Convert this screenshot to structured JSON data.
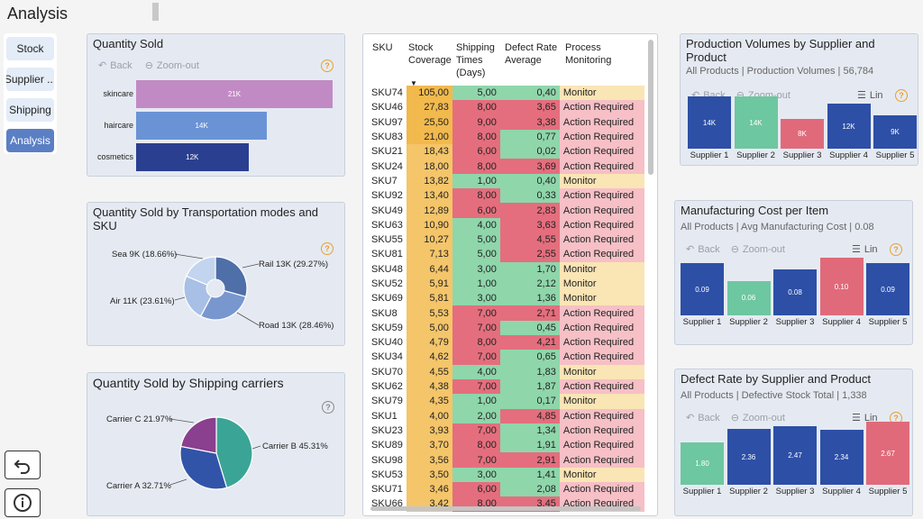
{
  "page": {
    "title": "Analysis"
  },
  "nav": {
    "items": [
      "Stock",
      "Supplier ...",
      "Shipping",
      "Analysis"
    ],
    "active": 3
  },
  "colors": {
    "accent": "#5b7fc4",
    "panel": "#e5eaf2",
    "help": "#e8a030"
  },
  "toolbar": {
    "back": "Back",
    "zoom_out": "Zoom-out",
    "lin": "Lin"
  },
  "qty_sold": {
    "title": "Quantity Sold",
    "chart_data": {
      "type": "bar",
      "orientation": "horizontal",
      "categories": [
        "skincare",
        "haircare",
        "cosmetics"
      ],
      "values": [
        21,
        14,
        12
      ],
      "labels": [
        "21K",
        "14K",
        "12K"
      ],
      "colors": [
        "#c28ac4",
        "#6a93d6",
        "#2a3f8f"
      ]
    }
  },
  "transport": {
    "title": "Quantity Sold by Transportation modes and SKU",
    "chart_data": {
      "type": "pie",
      "donut": true,
      "labels": [
        "Sea 9K (18.66%)",
        "Rail 13K (29.27%)",
        "Air 11K (23.61%)",
        "Road 13K (28.46%)"
      ],
      "values": [
        18.66,
        29.27,
        23.61,
        28.46
      ],
      "colors": [
        "#c3d4ee",
        "#4f6fa8",
        "#a8c0e6",
        "#7897cf"
      ]
    }
  },
  "carriers": {
    "title": "Quantity Sold by Shipping carriers",
    "chart_data": {
      "type": "pie",
      "labels": [
        "Carrier B 45.31%",
        "Carrier A 32.71%",
        "Carrier C 21.97%"
      ],
      "values": [
        45.31,
        32.71,
        21.97
      ],
      "colors": [
        "#3aa596",
        "#3254a8",
        "#8a3f8f"
      ]
    }
  },
  "table": {
    "headers": [
      "SKU",
      "Stock Coverage",
      "Shipping Times (Days)",
      "Defect Rate Average",
      "Process Monitoring"
    ],
    "rows": [
      [
        "SKU74",
        "105,00",
        "5,00",
        "0,40",
        "Monitor"
      ],
      [
        "SKU46",
        "27,83",
        "8,00",
        "3,65",
        "Action Required"
      ],
      [
        "SKU97",
        "25,50",
        "9,00",
        "3,38",
        "Action Required"
      ],
      [
        "SKU83",
        "21,00",
        "8,00",
        "0,77",
        "Action Required"
      ],
      [
        "SKU21",
        "18,43",
        "6,00",
        "0,02",
        "Action Required"
      ],
      [
        "SKU24",
        "18,00",
        "8,00",
        "3,69",
        "Action Required"
      ],
      [
        "SKU7",
        "13,82",
        "1,00",
        "0,40",
        "Monitor"
      ],
      [
        "SKU92",
        "13,40",
        "8,00",
        "0,33",
        "Action Required"
      ],
      [
        "SKU49",
        "12,89",
        "6,00",
        "2,83",
        "Action Required"
      ],
      [
        "SKU63",
        "10,90",
        "4,00",
        "3,63",
        "Action Required"
      ],
      [
        "SKU55",
        "10,27",
        "5,00",
        "4,55",
        "Action Required"
      ],
      [
        "SKU81",
        "7,13",
        "5,00",
        "2,55",
        "Action Required"
      ],
      [
        "SKU48",
        "6,44",
        "3,00",
        "1,70",
        "Monitor"
      ],
      [
        "SKU52",
        "5,91",
        "1,00",
        "2,12",
        "Monitor"
      ],
      [
        "SKU69",
        "5,81",
        "3,00",
        "1,36",
        "Monitor"
      ],
      [
        "SKU8",
        "5,53",
        "7,00",
        "2,71",
        "Action Required"
      ],
      [
        "SKU59",
        "5,00",
        "7,00",
        "0,45",
        "Action Required"
      ],
      [
        "SKU40",
        "4,79",
        "8,00",
        "4,21",
        "Action Required"
      ],
      [
        "SKU34",
        "4,62",
        "7,00",
        "0,65",
        "Action Required"
      ],
      [
        "SKU70",
        "4,55",
        "4,00",
        "1,83",
        "Monitor"
      ],
      [
        "SKU62",
        "4,38",
        "7,00",
        "1,87",
        "Action Required"
      ],
      [
        "SKU79",
        "4,35",
        "1,00",
        "0,17",
        "Monitor"
      ],
      [
        "SKU1",
        "4,00",
        "2,00",
        "4,85",
        "Action Required"
      ],
      [
        "SKU23",
        "3,93",
        "7,00",
        "1,34",
        "Action Required"
      ],
      [
        "SKU89",
        "3,70",
        "8,00",
        "1,91",
        "Action Required"
      ],
      [
        "SKU98",
        "3,56",
        "7,00",
        "2,91",
        "Action Required"
      ],
      [
        "SKU53",
        "3,50",
        "3,00",
        "1,41",
        "Monitor"
      ],
      [
        "SKU71",
        "3,46",
        "6,00",
        "2,08",
        "Action Required"
      ],
      [
        "SKU66",
        "3,42",
        "8,00",
        "3,45",
        "Action Required"
      ]
    ]
  },
  "prod_volumes": {
    "title": "Production Volumes by Supplier and Product",
    "subtitle": "All Products | Production Volumes | 56,784",
    "chart_data": {
      "type": "bar",
      "categories": [
        "Supplier 1",
        "Supplier 2",
        "Supplier 3",
        "Supplier 4",
        "Supplier 5"
      ],
      "values": [
        14,
        14,
        8,
        12,
        9
      ],
      "labels": [
        "14K",
        "14K",
        "8K",
        "12K",
        "9K"
      ],
      "colors": [
        "#2d4fa6",
        "#6dc7a0",
        "#e06a7a",
        "#2d4fa6",
        "#2d4fa6"
      ],
      "ymax": 14
    }
  },
  "mfg_cost": {
    "title": "Manufacturing Cost per Item",
    "subtitle": "All Products | Avg Manufacturing Cost | 0.08",
    "chart_data": {
      "type": "bar",
      "categories": [
        "Supplier 1",
        "Supplier 2",
        "Supplier 3",
        "Supplier 4",
        "Supplier 5"
      ],
      "values": [
        0.09,
        0.06,
        0.08,
        0.1,
        0.09
      ],
      "labels": [
        "0.09",
        "0.06",
        "0.08",
        "0.10",
        "0.09"
      ],
      "colors": [
        "#2d4fa6",
        "#6dc7a0",
        "#2d4fa6",
        "#e06a7a",
        "#2d4fa6"
      ],
      "ymax": 0.1
    }
  },
  "defect": {
    "title": "Defect Rate by Supplier and Product",
    "subtitle": "All Products |  Defective Stock Total | 1,338",
    "chart_data": {
      "type": "bar",
      "categories": [
        "Supplier 1",
        "Supplier 2",
        "Supplier 3",
        "Supplier 4",
        "Supplier 5"
      ],
      "values": [
        1.8,
        2.36,
        2.47,
        2.34,
        2.67
      ],
      "labels": [
        "1.80",
        "2.36",
        "2.47",
        "2.34",
        "2.67"
      ],
      "colors": [
        "#6dc7a0",
        "#2d4fa6",
        "#2d4fa6",
        "#2d4fa6",
        "#e06a7a"
      ],
      "ymax": 2.67
    }
  }
}
